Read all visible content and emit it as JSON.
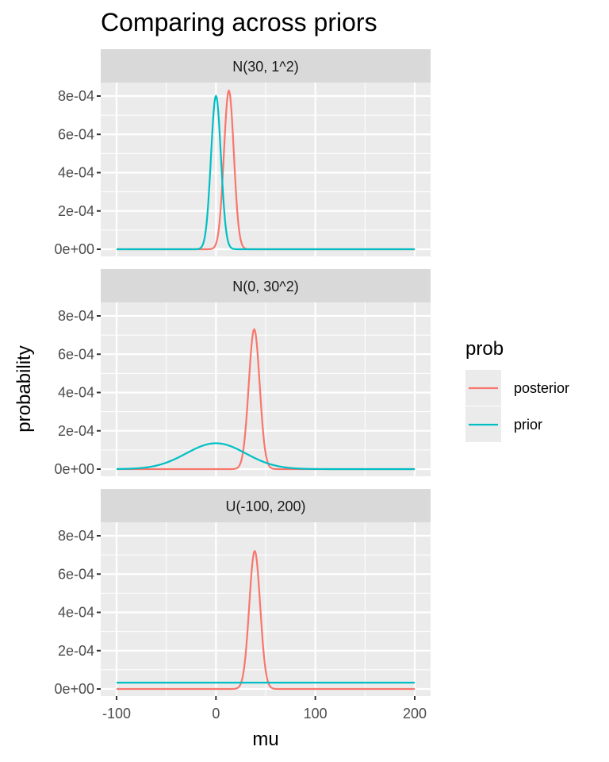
{
  "chart_data": {
    "type": "line",
    "title": "Comparing across priors",
    "xlabel": "mu",
    "ylabel": "probability",
    "xlim": [
      -100,
      200
    ],
    "ylim": [
      0,
      0.0008
    ],
    "x_ticks": [
      -100,
      0,
      100,
      200
    ],
    "x_tick_labels": [
      "-100",
      "0",
      "100",
      "200"
    ],
    "y_ticks": [
      0,
      0.0002,
      0.0004,
      0.0006,
      0.0008
    ],
    "y_tick_labels": [
      "0e+00",
      "2e-04",
      "4e-04",
      "6e-04",
      "8e-04"
    ],
    "grid": true,
    "legend": {
      "title": "prob",
      "position": "right",
      "entries": [
        {
          "name": "posterior",
          "color": "#F8766D"
        },
        {
          "name": "prior",
          "color": "#00BFC4"
        }
      ]
    },
    "facets": [
      {
        "label": "N(30, 1^2)",
        "series": [
          {
            "name": "posterior",
            "shape": "gaussian",
            "mean": 13,
            "sd": 5,
            "peak": 0.000828
          },
          {
            "name": "prior",
            "shape": "gaussian",
            "mean": 0,
            "sd": 5,
            "peak": 0.0008
          }
        ]
      },
      {
        "label": "N(0, 30^2)",
        "series": [
          {
            "name": "posterior",
            "shape": "gaussian",
            "mean": 38.5,
            "sd": 5.5,
            "peak": 0.00073
          },
          {
            "name": "prior",
            "shape": "gaussian",
            "mean": 0,
            "sd": 30,
            "peak": 0.000135
          }
        ]
      },
      {
        "label": "U(-100, 200)",
        "series": [
          {
            "name": "posterior",
            "shape": "gaussian",
            "mean": 39,
            "sd": 5.5,
            "peak": 0.00072
          },
          {
            "name": "prior",
            "shape": "flat",
            "value": 3.33e-05
          }
        ]
      }
    ]
  }
}
